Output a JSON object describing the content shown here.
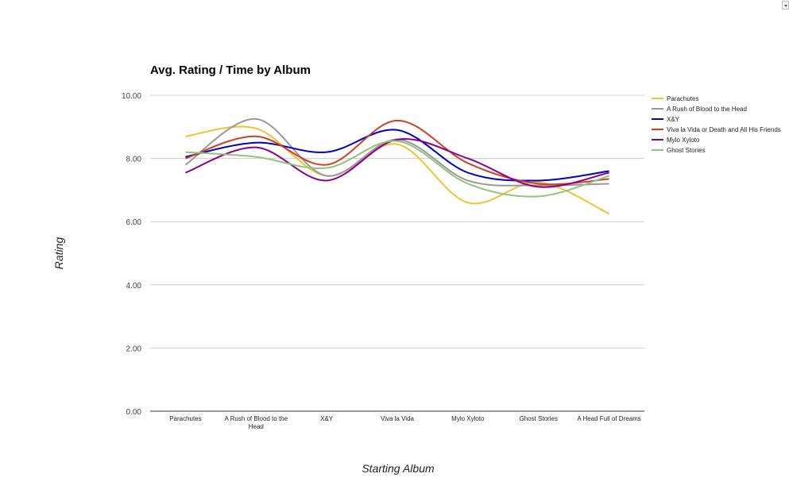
{
  "chart_data": {
    "type": "line",
    "title": "Avg. Rating / Time by Album",
    "xlabel": "Starting Album",
    "ylabel": "Rating",
    "ylim": [
      0,
      10
    ],
    "yticks": [
      "0.00",
      "2.00",
      "4.00",
      "6.00",
      "8.00",
      "10.00"
    ],
    "grid": true,
    "smooth": true,
    "legend_position": "right",
    "categories": [
      "Parachutes",
      "A Rush of Blood to the Head",
      "X&Y",
      "Viva la Vida",
      "Mylo Xyloto",
      "Ghost Stories",
      "A Head Full of Dreams"
    ],
    "category_lines": [
      [
        "Parachutes"
      ],
      [
        "A Rush of Blood to the",
        "Head"
      ],
      [
        "X&Y"
      ],
      [
        "Viva la Vida"
      ],
      [
        "Mylo Xyloto"
      ],
      [
        "Ghost Stories"
      ],
      [
        "A Head Full of Dreams"
      ]
    ],
    "series": [
      {
        "name": "Parachutes",
        "color": "#f1c232",
        "values": [
          8.7,
          8.95,
          7.45,
          8.45,
          6.6,
          7.25,
          6.25
        ]
      },
      {
        "name": "A Rush of Blood to the Head",
        "color": "#999999",
        "values": [
          7.8,
          9.25,
          7.45,
          8.6,
          7.3,
          7.15,
          7.2
        ]
      },
      {
        "name": "X&Y",
        "color": "#0000cc",
        "values": [
          8.05,
          8.5,
          8.2,
          8.9,
          7.55,
          7.3,
          7.6
        ]
      },
      {
        "name": "Viva la Vida or Death and All His Friends",
        "color": "#cc4125",
        "values": [
          8.0,
          8.7,
          7.8,
          9.2,
          7.85,
          7.2,
          7.35
        ]
      },
      {
        "name": "Mylo Xyloto",
        "color": "#8b008b",
        "values": [
          7.55,
          8.35,
          7.3,
          8.6,
          8.0,
          7.1,
          7.55
        ]
      },
      {
        "name": "Ghost Stories",
        "color": "#93c47d",
        "values": [
          8.2,
          8.05,
          7.7,
          8.55,
          7.2,
          6.8,
          7.45
        ]
      }
    ]
  },
  "ui": {
    "corner_menu_icon": "dropdown-arrow-icon"
  }
}
